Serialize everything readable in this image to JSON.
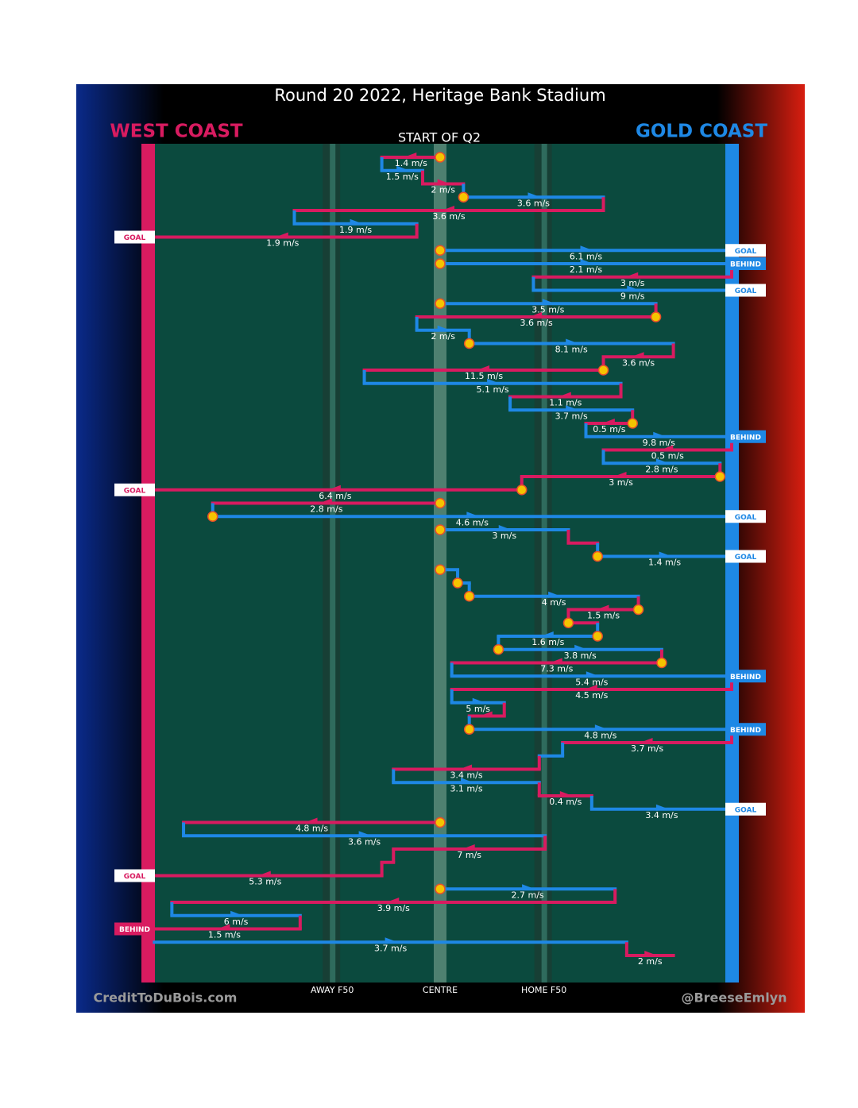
{
  "chart_data": {
    "type": "chain",
    "title": "Round 20 2022, Heritage Bank Stadium",
    "subtitle": "START OF Q2",
    "teams": [
      {
        "name": "WEST COAST",
        "color": "#d81b60"
      },
      {
        "name": "GOLD COAST",
        "color": "#1e88e5"
      }
    ],
    "xlim": [
      0,
      100
    ],
    "markers": [
      {
        "label": "AWAY F50",
        "value": 31.5
      },
      {
        "label": "CENTRE",
        "value": 50
      },
      {
        "label": "HOME F50",
        "value": 67.8
      }
    ],
    "credits": [
      "CreditToDuBois.com",
      "@BreeseEmlyn"
    ],
    "movements": [
      {
        "team": 0,
        "from": 50,
        "to": 40,
        "label": "1.4 m/s",
        "dot": true
      },
      {
        "team": 1,
        "from": 40,
        "to": 47,
        "label": "1.5 m/s"
      },
      {
        "team": 0,
        "from": 47,
        "to": 54,
        "label": "2 m/s"
      },
      {
        "team": 1,
        "from": 54,
        "to": 78,
        "label": "3.6 m/s",
        "dot": true
      },
      {
        "team": 0,
        "from": 78,
        "to": 25,
        "label": "3.6 m/s"
      },
      {
        "team": 1,
        "from": 25,
        "to": 46,
        "label": "1.9 m/s"
      },
      {
        "team": 0,
        "from": 46,
        "to": 0,
        "label": "1.9 m/s",
        "result": "GOAL"
      },
      {
        "team": 1,
        "from": 50,
        "to": 100,
        "label": "6.1 m/s",
        "dot": true,
        "result": "GOAL"
      },
      {
        "team": 1,
        "from": 50,
        "to": 100,
        "label": "2.1 m/s",
        "dot": true,
        "result": "BEHIND"
      },
      {
        "team": 0,
        "from": 100,
        "to": 66,
        "label": "3 m/s"
      },
      {
        "team": 1,
        "from": 66,
        "to": 100,
        "label": "9 m/s",
        "result": "GOAL"
      },
      {
        "team": 1,
        "from": 50,
        "to": 87,
        "label": "3.5 m/s",
        "dot": true
      },
      {
        "team": 0,
        "from": 87,
        "to": 46,
        "label": "3.6 m/s",
        "dot": true
      },
      {
        "team": 1,
        "from": 46,
        "to": 55,
        "label": "2 m/s"
      },
      {
        "team": 1,
        "from": 55,
        "to": 90,
        "label": "8.1 m/s",
        "dot": true
      },
      {
        "team": 0,
        "from": 90,
        "to": 78,
        "label": "3.6 m/s"
      },
      {
        "team": 0,
        "from": 78,
        "to": 37,
        "label": "11.5 m/s",
        "dot": true
      },
      {
        "team": 1,
        "from": 37,
        "to": 81,
        "label": "5.1 m/s"
      },
      {
        "team": 0,
        "from": 81,
        "to": 62,
        "label": "1.1 m/s"
      },
      {
        "team": 1,
        "from": 62,
        "to": 83,
        "label": "3.7 m/s"
      },
      {
        "team": 0,
        "from": 83,
        "to": 75,
        "label": "0.5 m/s",
        "dot": true
      },
      {
        "team": 1,
        "from": 75,
        "to": 100,
        "label": "9.8 m/s",
        "result": "BEHIND"
      },
      {
        "team": 0,
        "from": 100,
        "to": 78,
        "label": "0.5 m/s"
      },
      {
        "team": 1,
        "from": 78,
        "to": 98,
        "label": "2.8 m/s"
      },
      {
        "team": 0,
        "from": 98,
        "to": 64,
        "label": "3 m/s",
        "dot": true
      },
      {
        "team": 0,
        "from": 64,
        "to": 0,
        "label": "6.4 m/s",
        "dot": true,
        "result": "GOAL"
      },
      {
        "team": 0,
        "from": 50,
        "to": 11,
        "label": "2.8 m/s",
        "dot": true
      },
      {
        "team": 1,
        "from": 11,
        "to": 100,
        "label": "4.6 m/s",
        "dot": true,
        "result": "GOAL"
      },
      {
        "team": 1,
        "from": 50,
        "to": 72,
        "label": "3 m/s",
        "dot": true
      },
      {
        "team": 0,
        "from": 72,
        "to": 77
      },
      {
        "team": 1,
        "from": 77,
        "to": 100,
        "label": "1.4 m/s",
        "dot": true,
        "result": "GOAL"
      },
      {
        "team": 1,
        "from": 50,
        "to": 53,
        "dot": true
      },
      {
        "team": 1,
        "from": 53,
        "to": 55,
        "dot": true
      },
      {
        "team": 1,
        "from": 55,
        "to": 84,
        "label": "4 m/s",
        "dot": true
      },
      {
        "team": 0,
        "from": 84,
        "to": 72,
        "label": "1.5 m/s",
        "dot": true
      },
      {
        "team": 0,
        "from": 72,
        "to": 77,
        "dot": true
      },
      {
        "team": 1,
        "from": 77,
        "to": 60,
        "label": "1.6 m/s",
        "dot": true
      },
      {
        "team": 1,
        "from": 60,
        "to": 88,
        "label": "3.8 m/s",
        "dot": true
      },
      {
        "team": 0,
        "from": 88,
        "to": 52,
        "label": "7.3 m/s",
        "dot": true
      },
      {
        "team": 1,
        "from": 52,
        "to": 100,
        "label": "5.4 m/s",
        "result": "BEHIND"
      },
      {
        "team": 0,
        "from": 100,
        "to": 52,
        "label": "4.5 m/s"
      },
      {
        "team": 1,
        "from": 52,
        "to": 61,
        "label": "5 m/s"
      },
      {
        "team": 0,
        "from": 61,
        "to": 55
      },
      {
        "team": 1,
        "from": 55,
        "to": 100,
        "label": "4.8 m/s",
        "dot": true,
        "result": "BEHIND"
      },
      {
        "team": 0,
        "from": 100,
        "to": 71,
        "label": "3.7 m/s"
      },
      {
        "team": 1,
        "from": 71,
        "to": 67
      },
      {
        "team": 0,
        "from": 67,
        "to": 42,
        "label": "3.4 m/s"
      },
      {
        "team": 1,
        "from": 42,
        "to": 67,
        "label": "3.1 m/s"
      },
      {
        "team": 0,
        "from": 67,
        "to": 76,
        "label": "0.4 m/s"
      },
      {
        "team": 1,
        "from": 76,
        "to": 100,
        "label": "3.4 m/s",
        "result": "GOAL"
      },
      {
        "team": 0,
        "from": 50,
        "to": 6,
        "label": "4.8 m/s",
        "dot": true
      },
      {
        "team": 1,
        "from": 6,
        "to": 68,
        "label": "3.6 m/s"
      },
      {
        "team": 0,
        "from": 68,
        "to": 42,
        "label": "7 m/s"
      },
      {
        "team": 0,
        "from": 42,
        "to": 40
      },
      {
        "team": 0,
        "from": 40,
        "to": 0,
        "label": "5.3 m/s",
        "result": "GOAL"
      },
      {
        "team": 1,
        "from": 50,
        "to": 80,
        "label": "2.7 m/s",
        "dot": true
      },
      {
        "team": 0,
        "from": 80,
        "to": 4,
        "label": "3.9 m/s"
      },
      {
        "team": 1,
        "from": 4,
        "to": 26,
        "label": "6 m/s"
      },
      {
        "team": 0,
        "from": 26,
        "to": 0,
        "label": "1.5 m/s",
        "result": "BEHIND"
      },
      {
        "team": 1,
        "from": 1,
        "to": 82,
        "label": "3.7 m/s"
      },
      {
        "team": 0,
        "from": 82,
        "to": 90,
        "label": "2 m/s"
      }
    ]
  }
}
